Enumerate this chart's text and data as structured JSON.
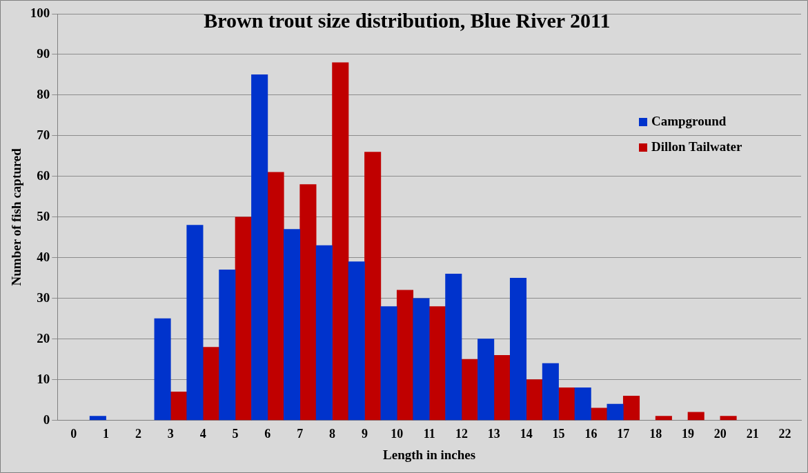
{
  "chart_data": {
    "type": "bar",
    "title": "Brown trout size distribution, Blue River 2011",
    "xlabel": "Length in inches",
    "ylabel": "Number of fish captured",
    "categories": [
      "0",
      "1",
      "2",
      "3",
      "4",
      "5",
      "6",
      "7",
      "8",
      "9",
      "10",
      "11",
      "12",
      "13",
      "14",
      "15",
      "16",
      "17",
      "18",
      "19",
      "20",
      "21",
      "22"
    ],
    "series": [
      {
        "name": "Campground",
        "color": "#0033cc",
        "values": [
          0,
          1,
          0,
          25,
          48,
          37,
          85,
          47,
          43,
          39,
          28,
          30,
          36,
          20,
          35,
          14,
          8,
          4,
          0,
          0,
          0,
          0,
          0
        ]
      },
      {
        "name": "Dillon Tailwater",
        "color": "#c00000",
        "values": [
          0,
          0,
          0,
          7,
          18,
          50,
          61,
          58,
          88,
          66,
          32,
          28,
          15,
          16,
          10,
          8,
          3,
          6,
          1,
          2,
          1,
          0,
          0
        ]
      }
    ],
    "ylim": [
      0,
      100
    ],
    "yticks": [
      0,
      10,
      20,
      30,
      40,
      50,
      60,
      70,
      80,
      90,
      100
    ],
    "grid": "y",
    "legend": "top right"
  }
}
